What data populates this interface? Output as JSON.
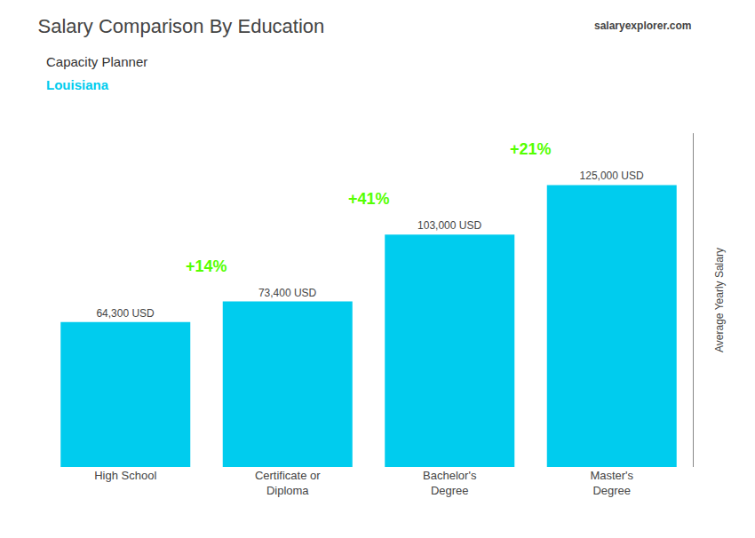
{
  "chart_data": {
    "type": "bar",
    "title": "Salary Comparison By Education",
    "subtitle": "Capacity Planner",
    "categories": [
      "High School",
      "Certificate or\nDiploma",
      "Bachelor's\nDegree",
      "Master's\nDegree"
    ],
    "values": [
      64300,
      73400,
      103000,
      125000
    ],
    "value_labels": [
      "64,300 USD",
      "73,400 USD",
      "103,000 USD",
      "125,000 USD"
    ],
    "data_labels": true,
    "color": "#00CCEE",
    "ylabel": "Average Yearly Salary",
    "ylim": [
      0,
      148000
    ],
    "tick_labels": "x",
    "grid": false,
    "annotations": [
      {
        "text": "Louisiana",
        "color": "#00CCEE"
      },
      {
        "text": "salaryexplorer.com"
      },
      {
        "text": "+14%",
        "color": "#55FF00"
      },
      {
        "text": "+41%",
        "color": "#55FF00"
      },
      {
        "text": "+21%",
        "color": "#55FF00"
      }
    ]
  }
}
